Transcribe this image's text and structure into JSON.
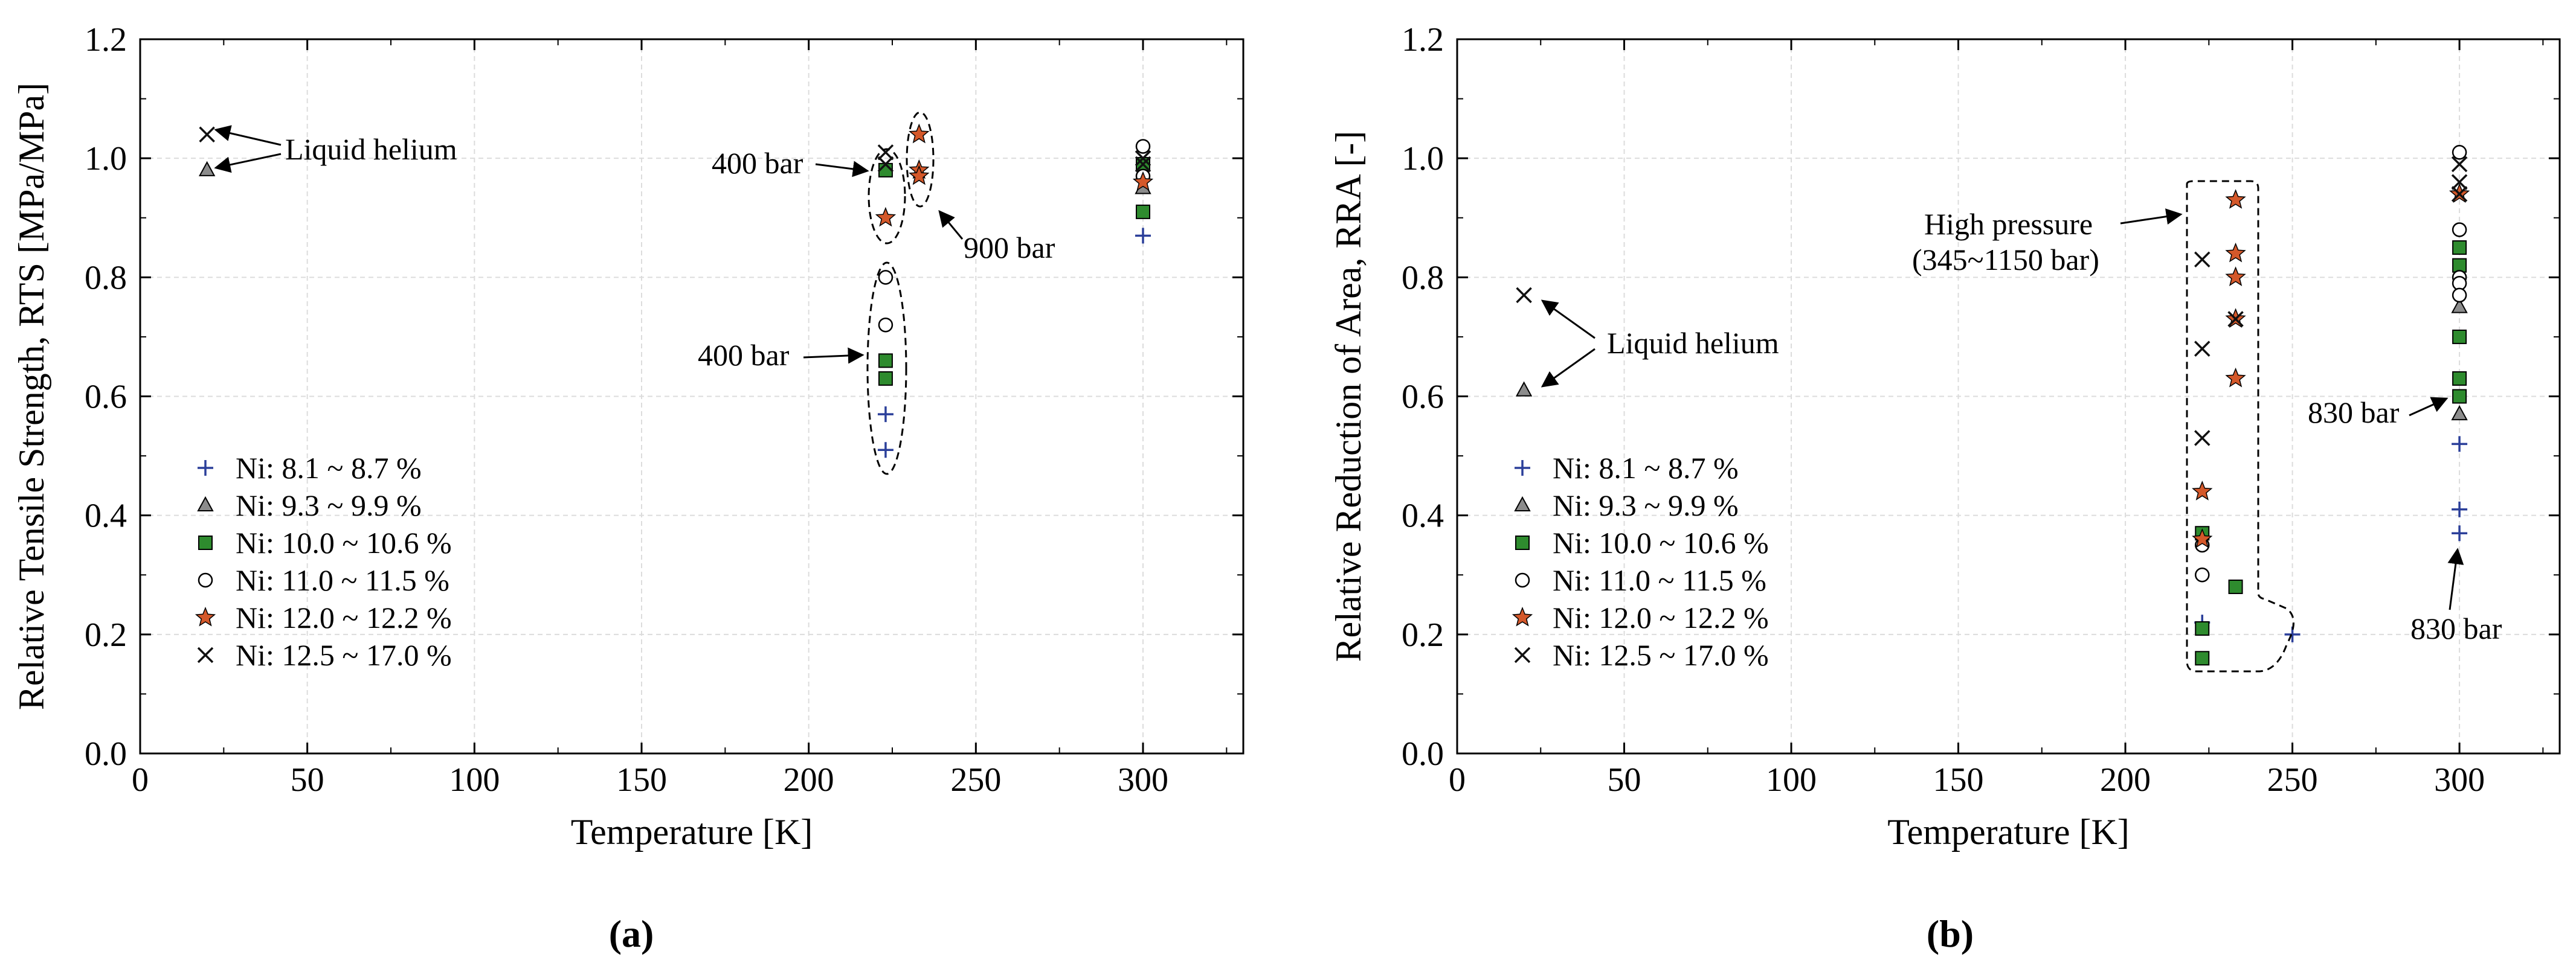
{
  "figure": {
    "panel_a_label": "(a)",
    "panel_b_label": "(b)"
  },
  "colors": {
    "plus": "#2b3f9a",
    "triangle": "#8c8c8c",
    "square": "#2e8b2e",
    "circle": "#ffffff",
    "star": "#d4582a",
    "cross": "#111111",
    "grid": "#dcdcdc"
  },
  "chart_data": [
    {
      "type": "scatter",
      "title": "",
      "xlabel": "Temperature [K]",
      "ylabel": "Relative Tensile Strength, RTS [MPa/MPa]",
      "xlim": [
        0,
        330
      ],
      "ylim": [
        0,
        1.2
      ],
      "xticks": [
        0,
        50,
        100,
        150,
        200,
        250,
        300
      ],
      "yticks": [
        0.0,
        0.2,
        0.4,
        0.6,
        0.8,
        1.0,
        1.2
      ],
      "xtick_labels": [
        "0",
        "50",
        "100",
        "150",
        "200",
        "250",
        "300"
      ],
      "ytick_labels": [
        "0.0",
        "0.2",
        "0.4",
        "0.6",
        "0.8",
        "1.0",
        "1.2"
      ],
      "grid": true,
      "legend_position": "bottom-left",
      "series": [
        {
          "name": "Ni: 8.1 ~ 8.7 %",
          "marker": "plus",
          "points": [
            [
              223,
              0.57
            ],
            [
              223,
              0.51
            ],
            [
              300,
              0.87
            ]
          ]
        },
        {
          "name": "Ni: 9.3 ~ 9.9 %",
          "marker": "triangle",
          "points": [
            [
              20,
              0.98
            ],
            [
              300,
              0.95
            ]
          ]
        },
        {
          "name": "Ni: 10.0 ~ 10.6 %",
          "marker": "square",
          "points": [
            [
              223,
              0.98
            ],
            [
              223,
              0.66
            ],
            [
              223,
              0.63
            ],
            [
              300,
              0.91
            ],
            [
              300,
              0.99
            ]
          ]
        },
        {
          "name": "Ni: 11.0 ~ 11.5 %",
          "marker": "circle",
          "points": [
            [
              223,
              0.8
            ],
            [
              223,
              0.72
            ],
            [
              300,
              1.02
            ],
            [
              300,
              0.97
            ]
          ]
        },
        {
          "name": "Ni: 12.0 ~ 12.2 %",
          "marker": "star",
          "points": [
            [
              223,
              0.9
            ],
            [
              233,
              1.04
            ],
            [
              233,
              0.98
            ],
            [
              233,
              0.97
            ],
            [
              300,
              0.96
            ]
          ]
        },
        {
          "name": "Ni: 12.5 ~ 17.0 %",
          "marker": "cross",
          "points": [
            [
              20,
              1.04
            ],
            [
              223,
              1.01
            ],
            [
              223,
              0.99
            ],
            [
              300,
              1.0
            ],
            [
              300,
              0.99
            ]
          ]
        }
      ],
      "annotations": [
        {
          "text": "Liquid helium"
        },
        {
          "text": "400 bar"
        },
        {
          "text": "900 bar"
        },
        {
          "text": "400 bar"
        }
      ]
    },
    {
      "type": "scatter",
      "title": "",
      "xlabel": "Temperature [K]",
      "ylabel": "Relative Reduction of Area, RRA [-]",
      "xlim": [
        0,
        330
      ],
      "ylim": [
        0,
        1.2
      ],
      "xticks": [
        0,
        50,
        100,
        150,
        200,
        250,
        300
      ],
      "yticks": [
        0.0,
        0.2,
        0.4,
        0.6,
        0.8,
        1.0,
        1.2
      ],
      "xtick_labels": [
        "0",
        "50",
        "100",
        "150",
        "200",
        "250",
        "300"
      ],
      "ytick_labels": [
        "0.0",
        "0.2",
        "0.4",
        "0.6",
        "0.8",
        "1.0",
        "1.2"
      ],
      "grid": true,
      "legend_position": "bottom-left",
      "series": [
        {
          "name": "Ni: 8.1 ~ 8.7 %",
          "marker": "plus",
          "points": [
            [
              223,
              0.22
            ],
            [
              250,
              0.2
            ],
            [
              300,
              0.52
            ],
            [
              300,
              0.41
            ],
            [
              300,
              0.37
            ]
          ]
        },
        {
          "name": "Ni: 9.3 ~ 9.9 %",
          "marker": "triangle",
          "points": [
            [
              20,
              0.61
            ],
            [
              300,
              0.75
            ],
            [
              300,
              0.57
            ]
          ]
        },
        {
          "name": "Ni: 10.0 ~ 10.6 %",
          "marker": "square",
          "points": [
            [
              223,
              0.37
            ],
            [
              223,
              0.21
            ],
            [
              223,
              0.16
            ],
            [
              233,
              0.28
            ],
            [
              300,
              0.85
            ],
            [
              300,
              0.82
            ],
            [
              300,
              0.7
            ],
            [
              300,
              0.63
            ],
            [
              300,
              0.6
            ]
          ]
        },
        {
          "name": "Ni: 11.0 ~ 11.5 %",
          "marker": "circle",
          "points": [
            [
              223,
              0.35
            ],
            [
              223,
              0.3
            ],
            [
              300,
              1.01
            ],
            [
              300,
              0.88
            ],
            [
              300,
              0.8
            ],
            [
              300,
              0.79
            ],
            [
              300,
              0.77
            ]
          ]
        },
        {
          "name": "Ni: 12.0 ~ 12.2 %",
          "marker": "star",
          "points": [
            [
              223,
              0.44
            ],
            [
              223,
              0.36
            ],
            [
              233,
              0.93
            ],
            [
              233,
              0.84
            ],
            [
              233,
              0.8
            ],
            [
              233,
              0.73
            ],
            [
              233,
              0.63
            ],
            [
              300,
              0.94
            ]
          ]
        },
        {
          "name": "Ni: 12.5 ~ 17.0 %",
          "marker": "cross",
          "points": [
            [
              20,
              0.77
            ],
            [
              223,
              0.83
            ],
            [
              223,
              0.68
            ],
            [
              223,
              0.53
            ],
            [
              233,
              0.73
            ],
            [
              300,
              0.99
            ],
            [
              300,
              0.96
            ],
            [
              300,
              0.94
            ]
          ]
        }
      ],
      "annotations": [
        {
          "text": "High pressure"
        },
        {
          "text": "(345~1150 bar)"
        },
        {
          "text": "Liquid helium"
        },
        {
          "text": "830 bar"
        },
        {
          "text": "830 bar"
        }
      ]
    }
  ]
}
